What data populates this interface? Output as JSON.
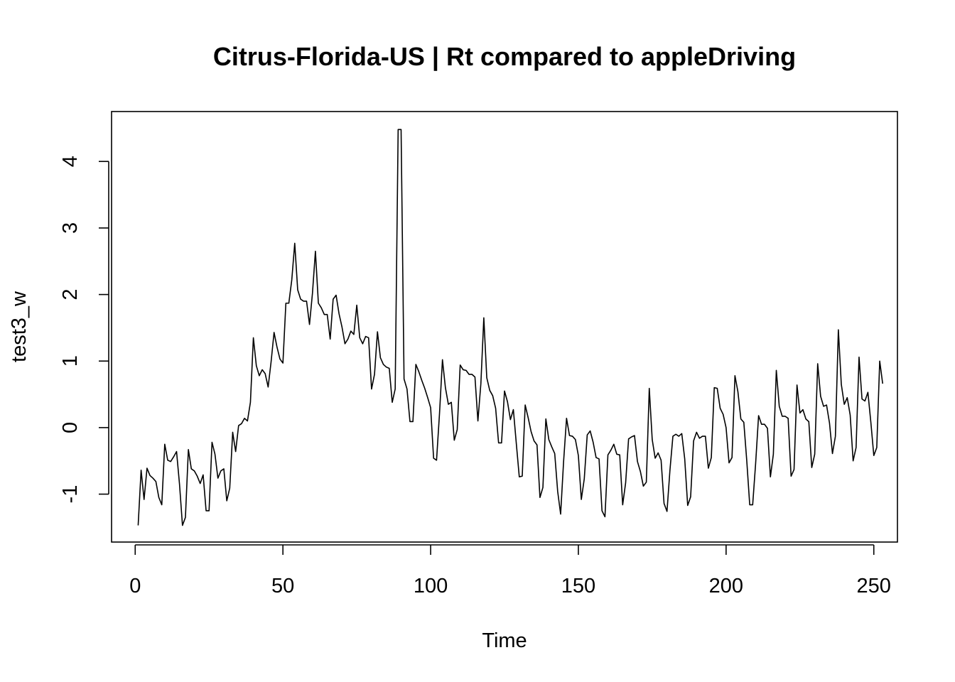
{
  "chart_data": {
    "type": "line",
    "title": "Citrus-Florida-US | Rt compared to appleDriving",
    "xlabel": "Time",
    "ylabel": "test3_w",
    "xlim": [
      -8,
      258
    ],
    "ylim": [
      -1.72,
      4.75
    ],
    "x_ticks": [
      0,
      50,
      100,
      150,
      200,
      250
    ],
    "y_ticks": [
      -1,
      0,
      1,
      2,
      3,
      4
    ],
    "grid": false,
    "legend": "none",
    "line_color": "#000000",
    "x_start": 1,
    "series": [
      {
        "values": [
          -1.47,
          -0.64,
          -1.08,
          -0.61,
          -0.72,
          -0.76,
          -0.81,
          -1.05,
          -1.16,
          -0.25,
          -0.49,
          -0.51,
          -0.44,
          -0.36,
          -0.85,
          -1.47,
          -1.35,
          -0.33,
          -0.62,
          -0.65,
          -0.73,
          -0.84,
          -0.71,
          -1.25,
          -1.25,
          -0.22,
          -0.4,
          -0.76,
          -0.65,
          -0.62,
          -1.1,
          -0.91,
          -0.07,
          -0.36,
          0.03,
          0.06,
          0.14,
          0.1,
          0.38,
          1.35,
          0.93,
          0.78,
          0.87,
          0.81,
          0.61,
          0.99,
          1.43,
          1.21,
          1.03,
          0.97,
          1.87,
          1.87,
          2.22,
          2.77,
          2.07,
          1.93,
          1.9,
          1.9,
          1.55,
          2.02,
          2.65,
          1.87,
          1.8,
          1.7,
          1.7,
          1.33,
          1.93,
          1.99,
          1.71,
          1.51,
          1.26,
          1.33,
          1.45,
          1.4,
          1.84,
          1.35,
          1.26,
          1.37,
          1.35,
          0.58,
          0.8,
          1.44,
          1.05,
          0.95,
          0.91,
          0.89,
          0.38,
          0.58,
          4.48,
          4.48,
          0.73,
          0.58,
          0.09,
          0.09,
          0.95,
          0.84,
          0.71,
          0.59,
          0.45,
          0.3,
          -0.46,
          -0.49,
          0.21,
          1.02,
          0.6,
          0.35,
          0.38,
          -0.19,
          -0.03,
          0.94,
          0.87,
          0.86,
          0.8,
          0.8,
          0.76,
          0.1,
          0.66,
          1.65,
          0.75,
          0.56,
          0.48,
          0.29,
          -0.23,
          -0.23,
          0.55,
          0.39,
          0.12,
          0.27,
          -0.24,
          -0.74,
          -0.73,
          0.34,
          0.15,
          -0.06,
          -0.2,
          -0.26,
          -1.05,
          -0.9,
          0.13,
          -0.18,
          -0.29,
          -0.39,
          -0.96,
          -1.3,
          -0.51,
          0.14,
          -0.12,
          -0.13,
          -0.18,
          -0.42,
          -1.08,
          -0.77,
          -0.11,
          -0.05,
          -0.22,
          -0.45,
          -0.47,
          -1.25,
          -1.34,
          -0.41,
          -0.34,
          -0.25,
          -0.4,
          -0.41,
          -1.16,
          -0.83,
          -0.17,
          -0.14,
          -0.12,
          -0.51,
          -0.66,
          -0.88,
          -0.82,
          0.59,
          -0.18,
          -0.46,
          -0.38,
          -0.49,
          -1.14,
          -1.26,
          -0.64,
          -0.13,
          -0.1,
          -0.13,
          -0.09,
          -0.47,
          -1.17,
          -1.04,
          -0.2,
          -0.07,
          -0.16,
          -0.13,
          -0.13,
          -0.61,
          -0.45,
          0.6,
          0.59,
          0.29,
          0.2,
          0.0,
          -0.53,
          -0.45,
          0.78,
          0.54,
          0.13,
          0.08,
          -0.5,
          -1.16,
          -1.16,
          -0.54,
          0.18,
          0.05,
          0.05,
          -0.01,
          -0.74,
          -0.4,
          0.86,
          0.32,
          0.17,
          0.17,
          0.14,
          -0.73,
          -0.63,
          0.64,
          0.22,
          0.27,
          0.13,
          0.09,
          -0.6,
          -0.4,
          0.96,
          0.47,
          0.32,
          0.34,
          0.07,
          -0.39,
          -0.13,
          1.47,
          0.65,
          0.35,
          0.45,
          0.19,
          -0.5,
          -0.3,
          1.06,
          0.43,
          0.4,
          0.53,
          0.08,
          -0.42,
          -0.3,
          1.0,
          0.66
        ]
      }
    ]
  }
}
